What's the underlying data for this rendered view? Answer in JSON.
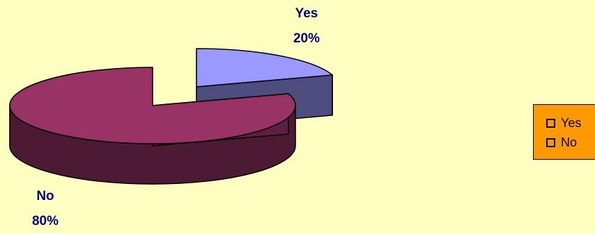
{
  "chart_data": {
    "type": "pie",
    "categories": [
      "Yes",
      "No"
    ],
    "values": [
      20,
      80
    ],
    "value_labels": [
      "20%",
      "80%"
    ],
    "colors": [
      "#9999ff",
      "#993366"
    ],
    "legend_position": "right",
    "legend_background": "#ff9900",
    "background": "#ffffc0"
  }
}
